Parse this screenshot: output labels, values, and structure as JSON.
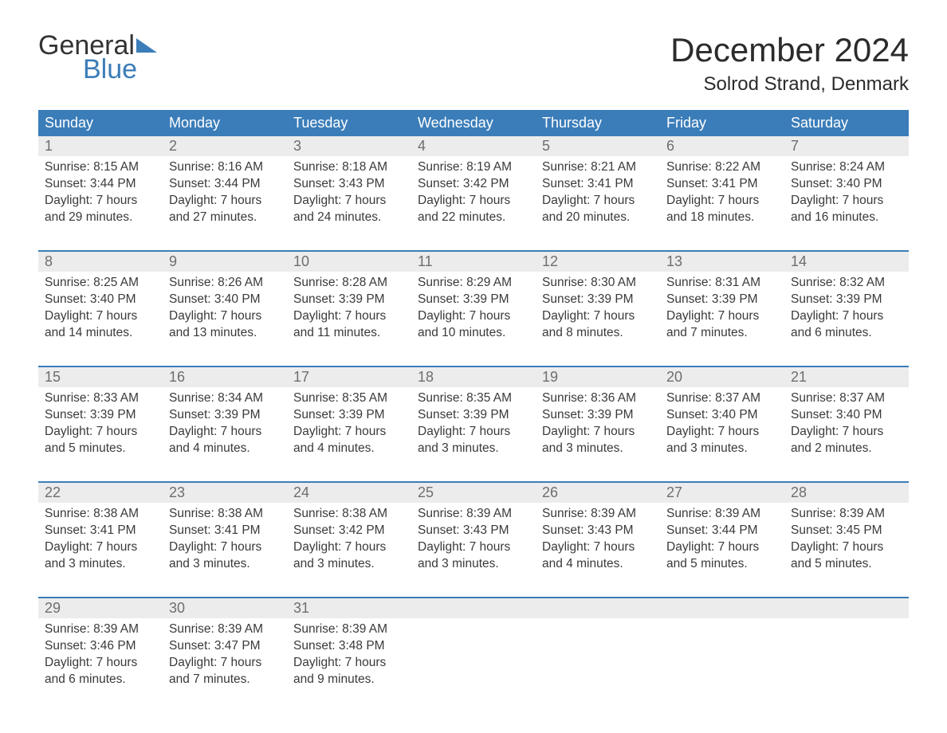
{
  "brand": {
    "general": "General",
    "blue": "Blue"
  },
  "title": "December 2024",
  "location": "Solrod Strand, Denmark",
  "colors": {
    "header_bg": "#3b7db9",
    "daynum_bg": "#ececec",
    "week_border": "#3b7db9",
    "text": "#3a3a3a",
    "title_text": "#2b2b2b"
  },
  "weekdays": [
    "Sunday",
    "Monday",
    "Tuesday",
    "Wednesday",
    "Thursday",
    "Friday",
    "Saturday"
  ],
  "weeks": [
    {
      "days": [
        {
          "n": "1",
          "sunrise": "Sunrise: 8:15 AM",
          "sunset": "Sunset: 3:44 PM",
          "d1": "Daylight: 7 hours",
          "d2": "and 29 minutes."
        },
        {
          "n": "2",
          "sunrise": "Sunrise: 8:16 AM",
          "sunset": "Sunset: 3:44 PM",
          "d1": "Daylight: 7 hours",
          "d2": "and 27 minutes."
        },
        {
          "n": "3",
          "sunrise": "Sunrise: 8:18 AM",
          "sunset": "Sunset: 3:43 PM",
          "d1": "Daylight: 7 hours",
          "d2": "and 24 minutes."
        },
        {
          "n": "4",
          "sunrise": "Sunrise: 8:19 AM",
          "sunset": "Sunset: 3:42 PM",
          "d1": "Daylight: 7 hours",
          "d2": "and 22 minutes."
        },
        {
          "n": "5",
          "sunrise": "Sunrise: 8:21 AM",
          "sunset": "Sunset: 3:41 PM",
          "d1": "Daylight: 7 hours",
          "d2": "and 20 minutes."
        },
        {
          "n": "6",
          "sunrise": "Sunrise: 8:22 AM",
          "sunset": "Sunset: 3:41 PM",
          "d1": "Daylight: 7 hours",
          "d2": "and 18 minutes."
        },
        {
          "n": "7",
          "sunrise": "Sunrise: 8:24 AM",
          "sunset": "Sunset: 3:40 PM",
          "d1": "Daylight: 7 hours",
          "d2": "and 16 minutes."
        }
      ]
    },
    {
      "days": [
        {
          "n": "8",
          "sunrise": "Sunrise: 8:25 AM",
          "sunset": "Sunset: 3:40 PM",
          "d1": "Daylight: 7 hours",
          "d2": "and 14 minutes."
        },
        {
          "n": "9",
          "sunrise": "Sunrise: 8:26 AM",
          "sunset": "Sunset: 3:40 PM",
          "d1": "Daylight: 7 hours",
          "d2": "and 13 minutes."
        },
        {
          "n": "10",
          "sunrise": "Sunrise: 8:28 AM",
          "sunset": "Sunset: 3:39 PM",
          "d1": "Daylight: 7 hours",
          "d2": "and 11 minutes."
        },
        {
          "n": "11",
          "sunrise": "Sunrise: 8:29 AM",
          "sunset": "Sunset: 3:39 PM",
          "d1": "Daylight: 7 hours",
          "d2": "and 10 minutes."
        },
        {
          "n": "12",
          "sunrise": "Sunrise: 8:30 AM",
          "sunset": "Sunset: 3:39 PM",
          "d1": "Daylight: 7 hours",
          "d2": "and 8 minutes."
        },
        {
          "n": "13",
          "sunrise": "Sunrise: 8:31 AM",
          "sunset": "Sunset: 3:39 PM",
          "d1": "Daylight: 7 hours",
          "d2": "and 7 minutes."
        },
        {
          "n": "14",
          "sunrise": "Sunrise: 8:32 AM",
          "sunset": "Sunset: 3:39 PM",
          "d1": "Daylight: 7 hours",
          "d2": "and 6 minutes."
        }
      ]
    },
    {
      "days": [
        {
          "n": "15",
          "sunrise": "Sunrise: 8:33 AM",
          "sunset": "Sunset: 3:39 PM",
          "d1": "Daylight: 7 hours",
          "d2": "and 5 minutes."
        },
        {
          "n": "16",
          "sunrise": "Sunrise: 8:34 AM",
          "sunset": "Sunset: 3:39 PM",
          "d1": "Daylight: 7 hours",
          "d2": "and 4 minutes."
        },
        {
          "n": "17",
          "sunrise": "Sunrise: 8:35 AM",
          "sunset": "Sunset: 3:39 PM",
          "d1": "Daylight: 7 hours",
          "d2": "and 4 minutes."
        },
        {
          "n": "18",
          "sunrise": "Sunrise: 8:35 AM",
          "sunset": "Sunset: 3:39 PM",
          "d1": "Daylight: 7 hours",
          "d2": "and 3 minutes."
        },
        {
          "n": "19",
          "sunrise": "Sunrise: 8:36 AM",
          "sunset": "Sunset: 3:39 PM",
          "d1": "Daylight: 7 hours",
          "d2": "and 3 minutes."
        },
        {
          "n": "20",
          "sunrise": "Sunrise: 8:37 AM",
          "sunset": "Sunset: 3:40 PM",
          "d1": "Daylight: 7 hours",
          "d2": "and 3 minutes."
        },
        {
          "n": "21",
          "sunrise": "Sunrise: 8:37 AM",
          "sunset": "Sunset: 3:40 PM",
          "d1": "Daylight: 7 hours",
          "d2": "and 2 minutes."
        }
      ]
    },
    {
      "days": [
        {
          "n": "22",
          "sunrise": "Sunrise: 8:38 AM",
          "sunset": "Sunset: 3:41 PM",
          "d1": "Daylight: 7 hours",
          "d2": "and 3 minutes."
        },
        {
          "n": "23",
          "sunrise": "Sunrise: 8:38 AM",
          "sunset": "Sunset: 3:41 PM",
          "d1": "Daylight: 7 hours",
          "d2": "and 3 minutes."
        },
        {
          "n": "24",
          "sunrise": "Sunrise: 8:38 AM",
          "sunset": "Sunset: 3:42 PM",
          "d1": "Daylight: 7 hours",
          "d2": "and 3 minutes."
        },
        {
          "n": "25",
          "sunrise": "Sunrise: 8:39 AM",
          "sunset": "Sunset: 3:43 PM",
          "d1": "Daylight: 7 hours",
          "d2": "and 3 minutes."
        },
        {
          "n": "26",
          "sunrise": "Sunrise: 8:39 AM",
          "sunset": "Sunset: 3:43 PM",
          "d1": "Daylight: 7 hours",
          "d2": "and 4 minutes."
        },
        {
          "n": "27",
          "sunrise": "Sunrise: 8:39 AM",
          "sunset": "Sunset: 3:44 PM",
          "d1": "Daylight: 7 hours",
          "d2": "and 5 minutes."
        },
        {
          "n": "28",
          "sunrise": "Sunrise: 8:39 AM",
          "sunset": "Sunset: 3:45 PM",
          "d1": "Daylight: 7 hours",
          "d2": "and 5 minutes."
        }
      ]
    },
    {
      "days": [
        {
          "n": "29",
          "sunrise": "Sunrise: 8:39 AM",
          "sunset": "Sunset: 3:46 PM",
          "d1": "Daylight: 7 hours",
          "d2": "and 6 minutes."
        },
        {
          "n": "30",
          "sunrise": "Sunrise: 8:39 AM",
          "sunset": "Sunset: 3:47 PM",
          "d1": "Daylight: 7 hours",
          "d2": "and 7 minutes."
        },
        {
          "n": "31",
          "sunrise": "Sunrise: 8:39 AM",
          "sunset": "Sunset: 3:48 PM",
          "d1": "Daylight: 7 hours",
          "d2": "and 9 minutes."
        },
        {
          "empty": true
        },
        {
          "empty": true
        },
        {
          "empty": true
        },
        {
          "empty": true
        }
      ]
    }
  ]
}
